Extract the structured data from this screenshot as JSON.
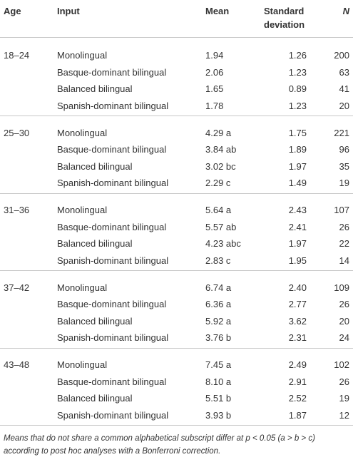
{
  "table": {
    "header": [
      "Age",
      "Input",
      "Mean",
      "Standard deviation",
      "N"
    ],
    "groups": [
      {
        "age": "18–24",
        "rows": [
          [
            "Monolingual",
            "1.94",
            "1.26",
            "200"
          ],
          [
            "Basque-dominant bilingual",
            "2.06",
            "1.23",
            "63"
          ],
          [
            "Balanced bilingual",
            "1.65",
            "0.89",
            "41"
          ],
          [
            "Spanish-dominant bilingual",
            "1.78",
            "1.23",
            "20"
          ]
        ]
      },
      {
        "age": "25–30",
        "rows": [
          [
            "Monolingual",
            "4.29 a",
            "1.75",
            "221"
          ],
          [
            "Basque-dominant bilingual",
            "3.84 ab",
            "1.89",
            "96"
          ],
          [
            "Balanced bilingual",
            "3.02 bc",
            "1.97",
            "35"
          ],
          [
            "Spanish-dominant bilingual",
            "2.29 c",
            "1.49",
            "19"
          ]
        ]
      },
      {
        "age": "31–36",
        "rows": [
          [
            "Monolingual",
            "5.64 a",
            "2.43",
            "107"
          ],
          [
            "Basque-dominant bilingual",
            "5.57 ab",
            "2.41",
            "26"
          ],
          [
            "Balanced bilingual",
            "4.23 abc",
            "1.97",
            "22"
          ],
          [
            "Spanish-dominant bilingual",
            "2.83 c",
            "1.95",
            "14"
          ]
        ]
      },
      {
        "age": "37–42",
        "rows": [
          [
            "Monolingual",
            "6.74 a",
            "2.40",
            "109"
          ],
          [
            "Basque-dominant bilingual",
            "6.36 a",
            "2.77",
            "26"
          ],
          [
            "Balanced bilingual",
            "5.92 a",
            "3.62",
            "20"
          ],
          [
            "Spanish-dominant bilingual",
            "3.76 b",
            "2.31",
            "24"
          ]
        ]
      },
      {
        "age": "43–48",
        "rows": [
          [
            "Monolingual",
            "7.45 a",
            "2.49",
            "102"
          ],
          [
            "Basque-dominant bilingual",
            "8.10 a",
            "2.91",
            "26"
          ],
          [
            "Balanced bilingual",
            "5.51 b",
            "2.52",
            "19"
          ],
          [
            "Spanish-dominant bilingual",
            "3.93 b",
            "1.87",
            "12"
          ]
        ]
      }
    ],
    "footnote": "Means that do not share a common alphabetical subscript differ at p < 0.05 (a > b > c) according to post hoc analyses with a Bonferroni correction."
  }
}
